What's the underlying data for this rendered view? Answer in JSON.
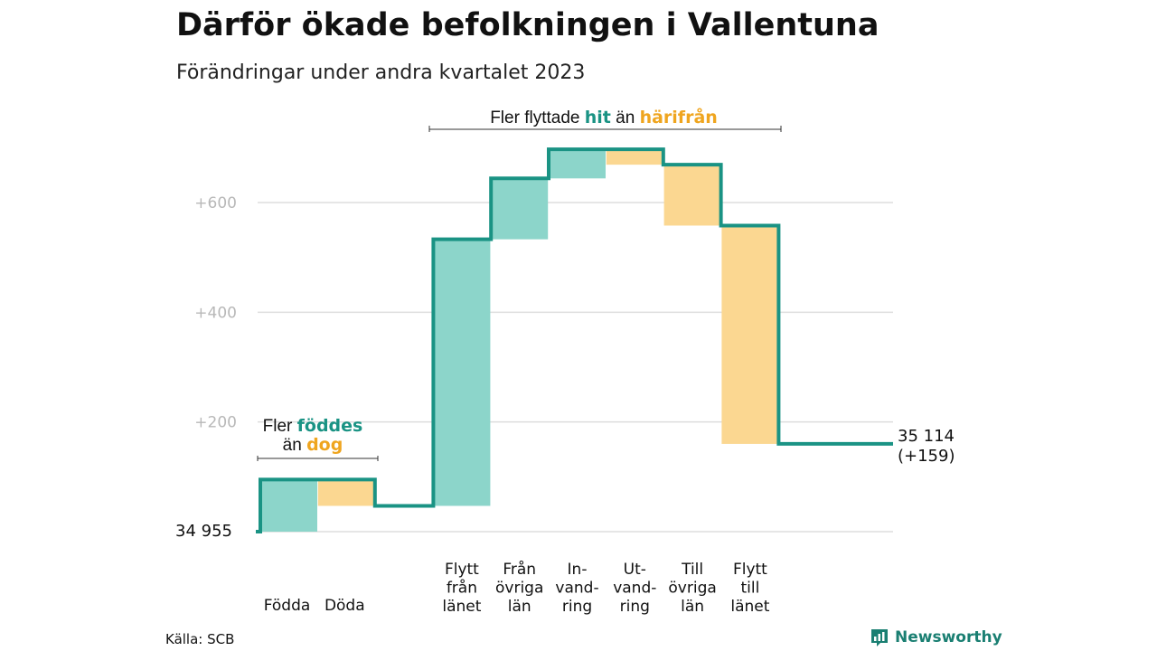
{
  "header": {
    "title": "Därför ökade befolkningen i Vallentuna",
    "subtitle": "Förändringar under andra kvartalet 2023"
  },
  "chart_data": {
    "type": "waterfall",
    "start_label": "34  955",
    "end_label": [
      "35 114",
      "(+159)"
    ],
    "start_value": 0,
    "end_value": 159,
    "ylim": [
      -10,
      700
    ],
    "yticks": [
      {
        "value": 200,
        "label": "+200"
      },
      {
        "value": 400,
        "label": "+400"
      },
      {
        "value": 600,
        "label": "+600"
      }
    ],
    "steps": [
      {
        "label": [
          "Födda"
        ],
        "delta": 95,
        "kind": "in"
      },
      {
        "label": [
          "Döda"
        ],
        "delta": -48,
        "kind": "out"
      },
      {
        "label": [],
        "delta": 0,
        "kind": "gap"
      },
      {
        "label": [
          "Flytt",
          "från",
          "länet"
        ],
        "delta": 486,
        "kind": "in"
      },
      {
        "label": [
          "Från",
          "övriga",
          "län"
        ],
        "delta": 111,
        "kind": "in"
      },
      {
        "label": [
          "In-",
          "vand-",
          "ring"
        ],
        "delta": 53,
        "kind": "in"
      },
      {
        "label": [
          "Ut-",
          "vand-",
          "ring"
        ],
        "delta": -28,
        "kind": "out"
      },
      {
        "label": [
          "Till",
          "övriga",
          "län"
        ],
        "delta": -111,
        "kind": "out"
      },
      {
        "label": [
          "Flytt",
          "till",
          "länet"
        ],
        "delta": -398,
        "kind": "out"
      }
    ],
    "colors": {
      "in": "#8cd5ca",
      "out": "#fbd791",
      "line": "#1a9384",
      "grid": "#dddddd"
    },
    "annotations": {
      "births": {
        "pre": "Fler ",
        "hl1": "föddes",
        "mid": "än ",
        "hl2": "dog"
      },
      "moves": {
        "pre": "Fler flyttade ",
        "hl1": "hit",
        "mid": " än ",
        "hl2": "härifrån"
      }
    }
  },
  "footer": {
    "source": "Källa: SCB",
    "logo_text": "Newsworthy",
    "logo_icon": "bar-chart-speech-icon"
  }
}
